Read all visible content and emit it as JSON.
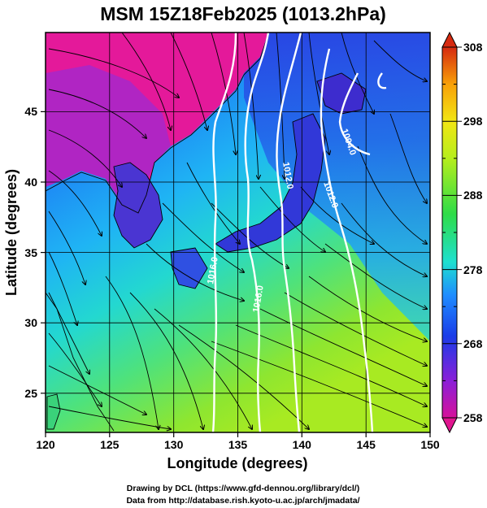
{
  "title": "MSM 15Z18Feb2025 (1013.2hPa)",
  "axes": {
    "xlabel": "Longitude (degrees)",
    "ylabel": "Latitude  (degrees)",
    "xlim": [
      120,
      150
    ],
    "ylim": [
      22.5,
      48
    ],
    "xticks": [
      "120",
      "125",
      "130",
      "135",
      "140",
      "145",
      "150"
    ],
    "yticks": [
      "25",
      "30",
      "35",
      "40",
      "45"
    ]
  },
  "colorbar": {
    "range": [
      258,
      308
    ],
    "ticks": [
      "258",
      "268",
      "278",
      "288",
      "298",
      "308"
    ],
    "colors": [
      "#d6119a",
      "#8a1fd8",
      "#1a3ce8",
      "#1ea0ff",
      "#1fe0d0",
      "#2edc48",
      "#b6ee1c",
      "#f2e614",
      "#f8a008",
      "#d62a10"
    ]
  },
  "contour_labels": [
    "1004.0",
    "1012.0",
    "1012.0",
    "1016.0",
    "1016.0"
  ],
  "credits": {
    "line1": "Drawing by DCL (https://www.gfd-dennou.org/library/dcl/)",
    "line2": "Data from http://database.rish.kyoto-u.ac.jp/arch/jmadata/"
  }
}
